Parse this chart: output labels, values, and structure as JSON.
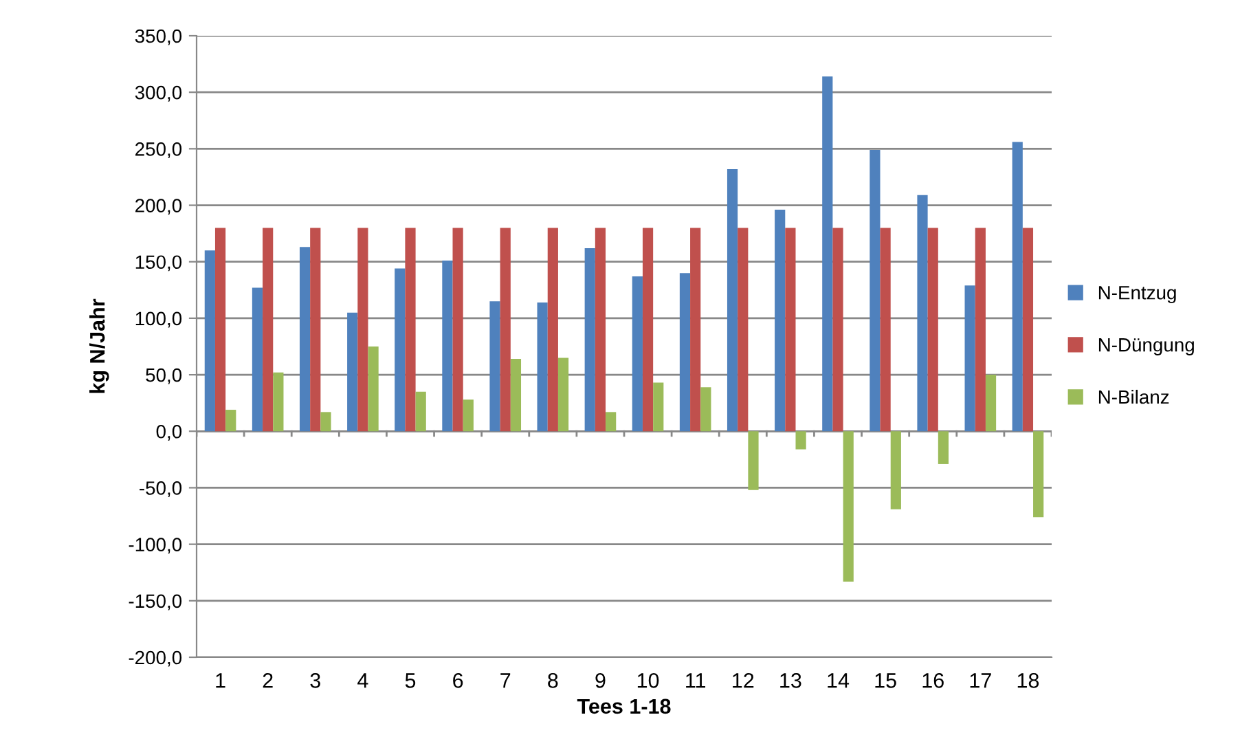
{
  "chart_data": {
    "type": "bar",
    "xlabel": "Tees 1-18",
    "ylabel": "kg N/Jahr",
    "categories": [
      "1",
      "2",
      "3",
      "4",
      "5",
      "6",
      "7",
      "8",
      "9",
      "10",
      "11",
      "12",
      "13",
      "14",
      "15",
      "16",
      "17",
      "18"
    ],
    "series": [
      {
        "name": "N-Entzug",
        "color": "#4f81bd",
        "values": [
          160,
          127,
          163,
          105,
          144,
          151,
          115,
          114,
          162,
          137,
          140,
          232,
          196,
          314,
          249,
          209,
          129,
          256
        ]
      },
      {
        "name": "N-Düngung",
        "color": "#c0504d",
        "values": [
          180,
          180,
          180,
          180,
          180,
          180,
          180,
          180,
          180,
          180,
          180,
          180,
          180,
          180,
          180,
          180,
          180,
          180
        ]
      },
      {
        "name": "N-Bilanz",
        "color": "#9bbb59",
        "values": [
          19,
          52,
          17,
          75,
          35,
          28,
          64,
          65,
          17,
          43,
          39,
          -52,
          -16,
          -133,
          -69,
          -29,
          50,
          -76
        ]
      }
    ],
    "ylim": [
      -200,
      350
    ],
    "yticks": [
      {
        "value": -200,
        "label": "-200,0"
      },
      {
        "value": -150,
        "label": "-150,0"
      },
      {
        "value": -100,
        "label": "-100,0"
      },
      {
        "value": -50,
        "label": "-50,0"
      },
      {
        "value": 0,
        "label": "0,0"
      },
      {
        "value": 50,
        "label": "50,0"
      },
      {
        "value": 100,
        "label": "100,0"
      },
      {
        "value": 150,
        "label": "150,0"
      },
      {
        "value": 200,
        "label": "200,0"
      },
      {
        "value": 250,
        "label": "250,0"
      },
      {
        "value": 300,
        "label": "300,0"
      },
      {
        "value": 350,
        "label": "350,0"
      }
    ],
    "grid": "y",
    "legend": "right"
  }
}
